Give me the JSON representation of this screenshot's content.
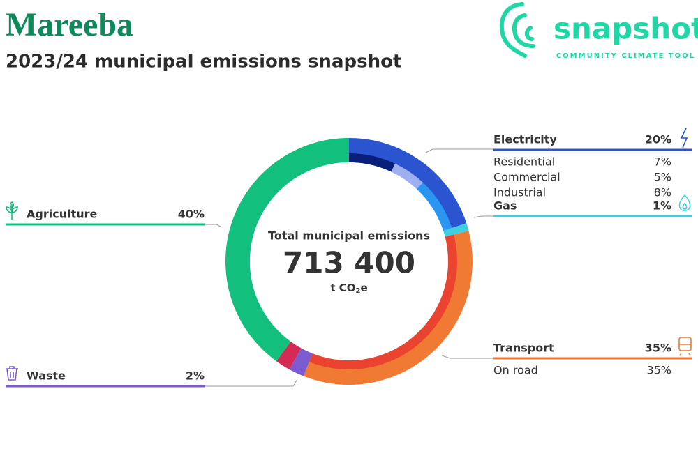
{
  "header": {
    "title": "Mareeba",
    "subtitle": "2023/24 municipal emissions snapshot"
  },
  "logo": {
    "name": "snapshot",
    "tagline": "COMMUNITY CLIMATE TOOL"
  },
  "center": {
    "label": "Total municipal emissions",
    "total": "713 400",
    "unit": [
      "t CO",
      "2",
      "e"
    ]
  },
  "chart_data": {
    "type": "donut",
    "sectors": [
      {
        "name": "Electricity",
        "value": 20,
        "value_label": "20%",
        "color": "#2a54d0",
        "parts": [
          {
            "name": "Residential",
            "value": 7,
            "value_label": "7%",
            "color": "#0a1f7a"
          },
          {
            "name": "Commercial",
            "value": 5,
            "value_label": "5%",
            "color": "#9fb0f0"
          },
          {
            "name": "Industrial",
            "value": 8,
            "value_label": "8%",
            "color": "#2b95f2"
          }
        ]
      },
      {
        "name": "Gas",
        "value": 1,
        "value_label": "1%",
        "color": "#3ecfe0",
        "parts": []
      },
      {
        "name": "Transport",
        "value": 35,
        "value_label": "35%",
        "color": "#f07a33",
        "parts": [
          {
            "name": "On road",
            "value": 35,
            "value_label": "35%",
            "color": "#ea4330"
          }
        ]
      },
      {
        "name": "Waste",
        "value": 2,
        "value_label": "2%",
        "color": "#7c5bd0",
        "parts": []
      },
      {
        "value": 2,
        "color": "#d42a55",
        "parts": []
      },
      {
        "name": "Agriculture",
        "value": 40,
        "value_label": "40%",
        "color": "#13bf7c",
        "parts": []
      }
    ]
  }
}
